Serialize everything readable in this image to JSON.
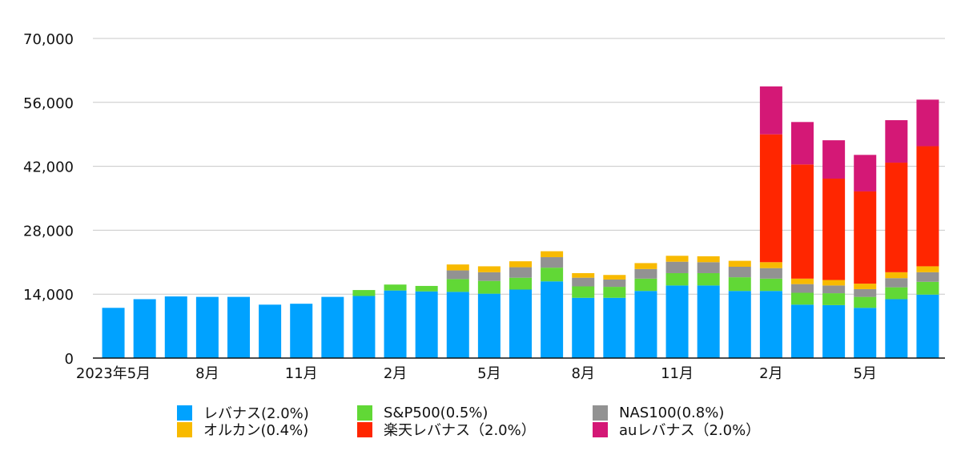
{
  "chart_data": {
    "type": "bar",
    "stacked": true,
    "categories": [
      "2023年5月",
      "",
      "",
      "8月",
      "",
      "",
      "11月",
      "",
      "",
      "2月",
      "",
      "",
      "5月",
      "",
      "",
      "8月",
      "",
      "",
      "11月",
      "",
      "",
      "2月",
      "",
      "",
      "5月",
      "",
      ""
    ],
    "series": [
      {
        "name": "レバナス(2.0%)",
        "color": "#00A2FF",
        "values": [
          11000,
          12900,
          13500,
          13400,
          13400,
          11700,
          11900,
          13400,
          13600,
          14800,
          14600,
          14500,
          14100,
          15000,
          16800,
          13200,
          13200,
          14700,
          15900,
          15900,
          14700,
          14700,
          11700,
          11600,
          11000,
          12900,
          13900
        ]
      },
      {
        "name": "S&P500(0.5%)",
        "color": "#61D836",
        "values": [
          0,
          0,
          0,
          0,
          0,
          0,
          0,
          0,
          1300,
          1300,
          1200,
          2800,
          2800,
          2600,
          3000,
          2500,
          2400,
          2700,
          2700,
          2700,
          3000,
          2700,
          2600,
          2600,
          2400,
          2600,
          2800
        ]
      },
      {
        "name": "NAS100(0.8%)",
        "color": "#929292",
        "values": [
          0,
          0,
          0,
          0,
          0,
          0,
          0,
          0,
          0,
          0,
          0,
          1900,
          1900,
          2300,
          2300,
          1900,
          1600,
          2100,
          2500,
          2400,
          2300,
          2300,
          1900,
          1700,
          1700,
          2000,
          2100
        ]
      },
      {
        "name": "オルカン(0.4%)",
        "color": "#F8BA00",
        "values": [
          0,
          0,
          0,
          0,
          0,
          0,
          0,
          0,
          0,
          0,
          0,
          1300,
          1300,
          1300,
          1300,
          1000,
          1000,
          1300,
          1300,
          1300,
          1300,
          1300,
          1200,
          1200,
          1200,
          1300,
          1300
        ]
      },
      {
        "name": "楽天レバナス（2.0%）",
        "color": "#FF2600",
        "values": [
          0,
          0,
          0,
          0,
          0,
          0,
          0,
          0,
          0,
          0,
          0,
          0,
          0,
          0,
          0,
          0,
          0,
          0,
          0,
          0,
          0,
          28000,
          25000,
          22200,
          20200,
          24000,
          26300
        ]
      },
      {
        "name": "auレバナス（2.0%）",
        "color": "#D41876",
        "values": [
          0,
          0,
          0,
          0,
          0,
          0,
          0,
          0,
          0,
          0,
          0,
          0,
          0,
          0,
          0,
          0,
          0,
          0,
          0,
          0,
          0,
          10500,
          9300,
          8400,
          8000,
          9300,
          10200
        ]
      }
    ],
    "y_ticks": [
      "0",
      "14,000",
      "28,000",
      "42,000",
      "56,000",
      "70,000"
    ],
    "ylim": [
      0,
      70000
    ],
    "grid": true,
    "legend_position": "bottom"
  }
}
